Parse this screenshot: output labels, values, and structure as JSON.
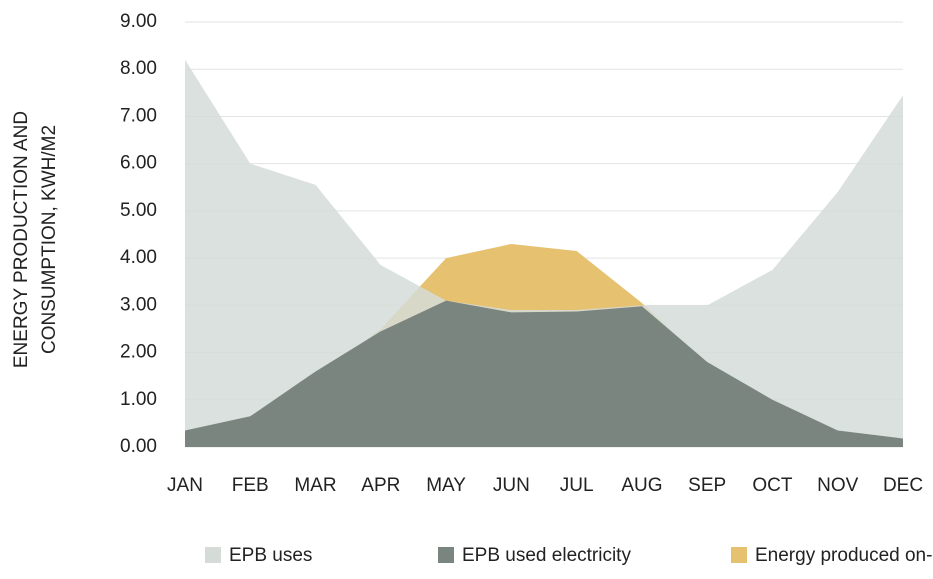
{
  "chart_data": {
    "type": "area",
    "y_label": [
      "ENERGY PRODUCTION AND",
      "CONSUMPTION, KWH/M2"
    ],
    "categories": [
      "JAN",
      "FEB",
      "MAR",
      "APR",
      "MAY",
      "JUN",
      "JUL",
      "AUG",
      "SEP",
      "OCT",
      "NOV",
      "DEC"
    ],
    "series": [
      {
        "name": "EPB uses",
        "color": "#d5dcd8",
        "values": [
          8.2,
          6.0,
          5.55,
          3.85,
          3.1,
          2.9,
          2.9,
          3.0,
          3.0,
          3.75,
          5.4,
          7.45
        ]
      },
      {
        "name": "EPB used electricity",
        "color": "#7b8580",
        "values": [
          0.35,
          0.65,
          1.6,
          2.45,
          3.1,
          2.85,
          2.87,
          2.98,
          1.8,
          1.0,
          0.35,
          0.18
        ]
      },
      {
        "name": "Energy produced on-site",
        "color": "#e6c170",
        "values": [
          0.3,
          0.6,
          1.5,
          2.5,
          4.0,
          4.3,
          4.15,
          3.05,
          1.75,
          0.95,
          0.3,
          0.15
        ]
      }
    ],
    "ylim": [
      0,
      9
    ],
    "yticks": [
      {
        "value": 0,
        "label": "0.00"
      },
      {
        "value": 1,
        "label": "1.00"
      },
      {
        "value": 2,
        "label": "2.00"
      },
      {
        "value": 3,
        "label": "3.00"
      },
      {
        "value": 4,
        "label": "4.00"
      },
      {
        "value": 5,
        "label": "5.00"
      },
      {
        "value": 6,
        "label": "6.00"
      },
      {
        "value": 7,
        "label": "7.00"
      },
      {
        "value": 8,
        "label": "8.00"
      },
      {
        "value": 9,
        "label": "9.00"
      }
    ],
    "grid": true,
    "legend": "bottom"
  }
}
